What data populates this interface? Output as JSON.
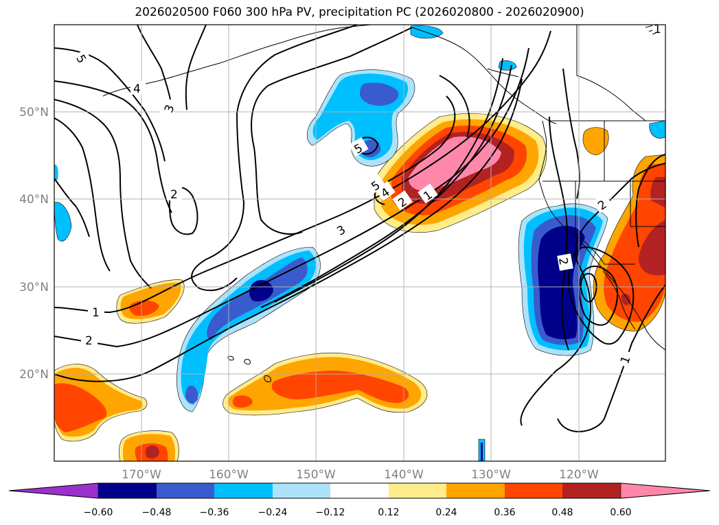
{
  "title": "2026020500 F060 300 hPa PV, precipitation PC (2026020800 - 2026020900)",
  "map": {
    "lon_range": [
      -180,
      -110
    ],
    "lat_range": [
      10,
      60
    ],
    "lat_labels": [
      "20°N",
      "30°N",
      "40°N",
      "50°N"
    ],
    "lon_labels": [
      "170°W",
      "160°W",
      "150°W",
      "140°W",
      "130°W",
      "120°W"
    ],
    "grid": true
  },
  "colorbar": {
    "orientation": "horizontal",
    "extend": "both",
    "colors": [
      "#9932CC",
      "#00008B",
      "#3A5BCD",
      "#00BFFF",
      "#ADE3FA",
      "#FFFFFF",
      "#FFEC8B",
      "#FFA500",
      "#FF4500",
      "#B22222",
      "#FF88AA"
    ],
    "tick_labels": [
      "−0.60",
      "−0.48",
      "−0.36",
      "−0.24",
      "−0.12",
      "0.12",
      "0.24",
      "0.36",
      "0.48",
      "0.60"
    ]
  },
  "contour_labels": [
    "1",
    "1",
    "1",
    "1",
    "2",
    "2",
    "2",
    "2",
    "2",
    "3",
    "3",
    "4",
    "4",
    "5",
    "5",
    "5"
  ]
}
